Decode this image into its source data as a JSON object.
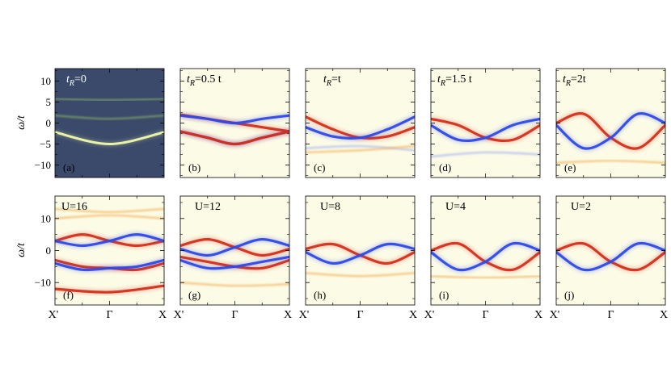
{
  "figure": {
    "ylabel": "ω/t",
    "xticks": [
      "X'",
      "Γ",
      "X"
    ]
  },
  "colors": {
    "panel_a_background": "#3b4a6b",
    "panel_background": "#fbfbe6",
    "spin_up": "#2f49e8",
    "spin_down": "#d32f1a",
    "faint_up": "#a8b3f4",
    "faint_down": "#f3b05a",
    "bare_band": "#e9f3a8"
  },
  "chart_data": [
    {
      "type": "heatmap",
      "panel": "(a)",
      "label": "t_R=0",
      "ylim": [
        -13,
        13
      ],
      "yticks": [
        10,
        5,
        0,
        -5,
        -10
      ],
      "x": [
        "X'",
        "Γ",
        "X"
      ],
      "series": [
        {
          "name": "",
          "kind": "bare",
          "x": [
            0,
            0.5,
            1
          ],
          "y": [
            -2.2,
            -5.0,
            -2.2
          ]
        },
        {
          "name": "",
          "kind": "faint",
          "x": [
            0,
            0.5,
            1
          ],
          "y": [
            1.8,
            1.0,
            1.8
          ]
        },
        {
          "name": "",
          "kind": "faint",
          "x": [
            0,
            0.5,
            1
          ],
          "y": [
            5.8,
            5.5,
            5.8
          ]
        }
      ]
    },
    {
      "type": "heatmap",
      "panel": "(b)",
      "label": "t_R=0.5 t",
      "ylim": [
        -13,
        13
      ],
      "x": [
        "X'",
        "Γ",
        "X"
      ],
      "series": [
        {
          "name": "",
          "kind": "down",
          "x": [
            0,
            0.25,
            0.5,
            0.75,
            1
          ],
          "y": [
            2.0,
            1.0,
            0.0,
            -1.0,
            -2.0
          ]
        },
        {
          "name": "",
          "kind": "up",
          "x": [
            0,
            0.25,
            0.5,
            0.75,
            1
          ],
          "y": [
            -2.0,
            -3.5,
            -5.0,
            -3.5,
            -2.0
          ]
        },
        {
          "name": "",
          "kind": "down",
          "x": [
            0,
            0.25,
            0.5,
            0.75,
            1
          ],
          "y": [
            -2.0,
            -3.5,
            -5.0,
            -3.5,
            -2.0
          ]
        },
        {
          "name": "",
          "kind": "up",
          "x": [
            0,
            0.25,
            0.5,
            0.75,
            1
          ],
          "y": [
            1.8,
            1.0,
            0.0,
            1.0,
            1.8
          ]
        }
      ]
    },
    {
      "type": "heatmap",
      "panel": "(c)",
      "label": "t_R=t",
      "ylim": [
        -13,
        13
      ],
      "x": [
        "X'",
        "Γ",
        "X"
      ],
      "series": [
        {
          "name": "",
          "kind": "down",
          "x": [
            0,
            0.25,
            0.5,
            0.75,
            1
          ],
          "y": [
            1.5,
            -1.5,
            -3.5,
            -3.2,
            -1.0
          ]
        },
        {
          "name": "",
          "kind": "up",
          "x": [
            0,
            0.25,
            0.5,
            0.75,
            1
          ],
          "y": [
            -1.0,
            -3.2,
            -3.5,
            -1.5,
            1.5
          ]
        },
        {
          "name": "",
          "kind": "faint_up",
          "x": [
            0,
            0.5,
            1
          ],
          "y": [
            -6.0,
            -5.5,
            -6.5
          ]
        },
        {
          "name": "",
          "kind": "faint_down",
          "x": [
            0,
            0.5,
            1
          ],
          "y": [
            -7.0,
            -6.5,
            -5.5
          ]
        }
      ]
    },
    {
      "type": "heatmap",
      "panel": "(d)",
      "label": "t_R=1.5 t",
      "ylim": [
        -13,
        13
      ],
      "x": [
        "X'",
        "Γ",
        "X"
      ],
      "series": [
        {
          "name": "",
          "kind": "down",
          "x": [
            0,
            0.25,
            0.5,
            0.75,
            1
          ],
          "y": [
            1.0,
            -0.5,
            -3.5,
            -4.0,
            -0.5
          ]
        },
        {
          "name": "",
          "kind": "up",
          "x": [
            0,
            0.25,
            0.5,
            0.75,
            1
          ],
          "y": [
            -0.5,
            -4.0,
            -3.5,
            -0.5,
            1.0
          ]
        },
        {
          "name": "",
          "kind": "faint_up",
          "x": [
            0,
            0.5,
            1
          ],
          "y": [
            -8.0,
            -7.0,
            -7.5
          ]
        }
      ]
    },
    {
      "type": "heatmap",
      "panel": "(e)",
      "label": "t_R=2t",
      "ylim": [
        -13,
        13
      ],
      "x": [
        "X'",
        "Γ",
        "X"
      ],
      "series": [
        {
          "name": "",
          "kind": "down",
          "x": [
            0,
            0.25,
            0.5,
            0.75,
            1
          ],
          "y": [
            0.0,
            2.2,
            -3.5,
            -6.0,
            -0.5
          ]
        },
        {
          "name": "",
          "kind": "up",
          "x": [
            0,
            0.25,
            0.5,
            0.75,
            1
          ],
          "y": [
            -0.5,
            -6.0,
            -3.5,
            2.2,
            0.0
          ]
        },
        {
          "name": "",
          "kind": "faint_down",
          "x": [
            0,
            0.5,
            1
          ],
          "y": [
            -9.5,
            -9.0,
            -9.5
          ]
        }
      ]
    },
    {
      "type": "heatmap",
      "panel": "(f)",
      "label": "U=16",
      "ylim": [
        -17,
        17
      ],
      "yticks": [
        10,
        0,
        -10
      ],
      "x": [
        "X'",
        "Γ",
        "X"
      ],
      "series": [
        {
          "name": "",
          "kind": "down",
          "x": [
            0,
            0.25,
            0.5,
            0.75,
            1
          ],
          "y": [
            3.0,
            5.0,
            3.0,
            1.5,
            3.0
          ]
        },
        {
          "name": "",
          "kind": "up",
          "x": [
            0,
            0.25,
            0.5,
            0.75,
            1
          ],
          "y": [
            3.0,
            1.5,
            3.0,
            5.0,
            3.0
          ]
        },
        {
          "name": "",
          "kind": "down",
          "x": [
            0,
            0.25,
            0.5,
            0.75,
            1
          ],
          "y": [
            -3.0,
            -5.0,
            -5.5,
            -6.0,
            -4.0
          ]
        },
        {
          "name": "",
          "kind": "up",
          "x": [
            0,
            0.25,
            0.5,
            0.75,
            1
          ],
          "y": [
            -4.0,
            -6.0,
            -5.5,
            -5.0,
            -3.0
          ]
        },
        {
          "name": "",
          "kind": "down",
          "x": [
            0,
            0.5,
            1
          ],
          "y": [
            -12.0,
            -13.0,
            -11.0
          ]
        },
        {
          "name": "",
          "kind": "faint_down",
          "x": [
            0,
            0.5,
            1
          ],
          "y": [
            10.0,
            11.0,
            10.0
          ]
        },
        {
          "name": "",
          "kind": "faint_down",
          "x": [
            0,
            0.5,
            1
          ],
          "y": [
            13.0,
            12.0,
            13.0
          ]
        }
      ]
    },
    {
      "type": "heatmap",
      "panel": "(g)",
      "label": "U=12",
      "ylim": [
        -17,
        17
      ],
      "x": [
        "X'",
        "Γ",
        "X"
      ],
      "series": [
        {
          "name": "",
          "kind": "down",
          "x": [
            0,
            0.25,
            0.5,
            0.75,
            1
          ],
          "y": [
            1.5,
            3.5,
            1.0,
            -1.5,
            0.5
          ]
        },
        {
          "name": "",
          "kind": "up",
          "x": [
            0,
            0.25,
            0.5,
            0.75,
            1
          ],
          "y": [
            0.5,
            -1.5,
            1.0,
            3.5,
            1.5
          ]
        },
        {
          "name": "",
          "kind": "down",
          "x": [
            0,
            0.25,
            0.5,
            0.75,
            1
          ],
          "y": [
            -2.0,
            -3.5,
            -5.0,
            -5.5,
            -3.0
          ]
        },
        {
          "name": "",
          "kind": "up",
          "x": [
            0,
            0.25,
            0.5,
            0.75,
            1
          ],
          "y": [
            -3.0,
            -5.5,
            -5.0,
            -3.5,
            -2.0
          ]
        },
        {
          "name": "",
          "kind": "faint_down",
          "x": [
            0,
            0.5,
            1
          ],
          "y": [
            -10.0,
            -11.0,
            -10.5
          ]
        }
      ]
    },
    {
      "type": "heatmap",
      "panel": "(h)",
      "label": "U=8",
      "ylim": [
        -17,
        17
      ],
      "x": [
        "X'",
        "Γ",
        "X"
      ],
      "series": [
        {
          "name": "",
          "kind": "down",
          "x": [
            0,
            0.25,
            0.5,
            0.75,
            1
          ],
          "y": [
            0.5,
            2.0,
            -1.5,
            -4.0,
            -0.5
          ]
        },
        {
          "name": "",
          "kind": "up",
          "x": [
            0,
            0.25,
            0.5,
            0.75,
            1
          ],
          "y": [
            -0.5,
            -4.0,
            -1.5,
            2.0,
            0.5
          ]
        },
        {
          "name": "",
          "kind": "faint_down",
          "x": [
            0,
            0.5,
            1
          ],
          "y": [
            -7.0,
            -8.0,
            -7.0
          ]
        }
      ]
    },
    {
      "type": "heatmap",
      "panel": "(i)",
      "label": "U=4",
      "ylim": [
        -17,
        17
      ],
      "x": [
        "X'",
        "Γ",
        "X"
      ],
      "series": [
        {
          "name": "",
          "kind": "down",
          "x": [
            0,
            0.25,
            0.5,
            0.75,
            1
          ],
          "y": [
            0.0,
            2.2,
            -3.5,
            -6.0,
            -0.5
          ]
        },
        {
          "name": "",
          "kind": "up",
          "x": [
            0,
            0.25,
            0.5,
            0.75,
            1
          ],
          "y": [
            -0.5,
            -6.0,
            -3.5,
            2.2,
            0.0
          ]
        },
        {
          "name": "",
          "kind": "faint_down",
          "x": [
            0,
            0.5,
            1
          ],
          "y": [
            -8.0,
            -8.5,
            -8.0
          ]
        }
      ]
    },
    {
      "type": "heatmap",
      "panel": "(j)",
      "label": "U=2",
      "ylim": [
        -17,
        17
      ],
      "x": [
        "X'",
        "Γ",
        "X"
      ],
      "series": [
        {
          "name": "",
          "kind": "down",
          "x": [
            0,
            0.25,
            0.5,
            0.75,
            1
          ],
          "y": [
            0.0,
            2.2,
            -3.5,
            -6.0,
            -0.5
          ]
        },
        {
          "name": "",
          "kind": "up",
          "x": [
            0,
            0.25,
            0.5,
            0.75,
            1
          ],
          "y": [
            -0.5,
            -6.0,
            -3.5,
            2.2,
            0.0
          ]
        }
      ]
    }
  ]
}
